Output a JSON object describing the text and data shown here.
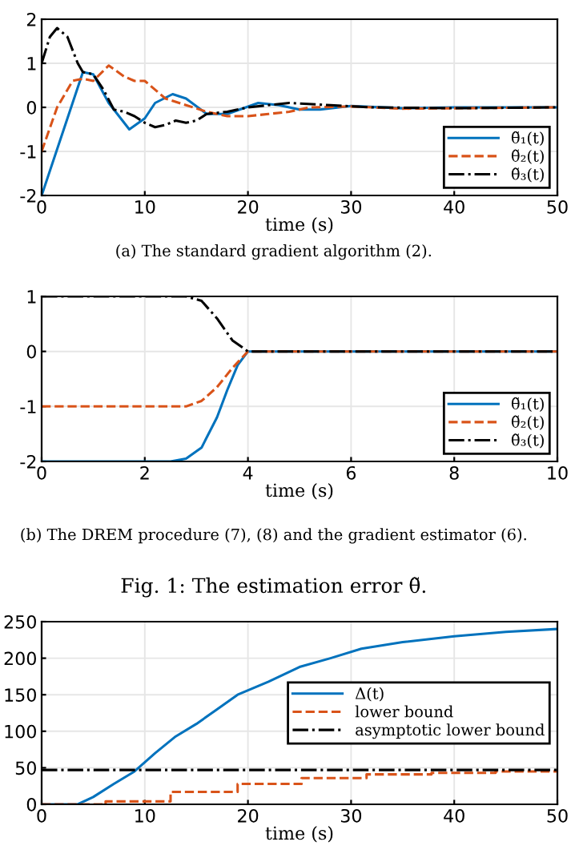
{
  "chart_data": [
    {
      "type": "line",
      "xlabel": "time (s)",
      "xlim": [
        0,
        50
      ],
      "ylim": [
        -2,
        2
      ],
      "xticks": [
        0,
        10,
        20,
        30,
        40,
        50
      ],
      "yticks": [
        -2,
        -1,
        0,
        1,
        2
      ],
      "grid": true,
      "legend": "bottom right",
      "annotations": [
        "(a) The standard gradient algorithm (2)."
      ],
      "series": [
        {
          "name": "θ̃₁(t)",
          "color": "#0072bd",
          "line_style": "solid",
          "x": [
            0,
            4,
            5,
            6.5,
            8.5,
            10,
            11,
            12.7,
            14,
            16,
            18,
            21,
            23,
            25,
            27,
            30,
            35,
            40,
            50
          ],
          "values": [
            -2,
            0.8,
            0.75,
            0.1,
            -0.5,
            -0.25,
            0.1,
            0.3,
            0.2,
            -0.15,
            -0.15,
            0.1,
            0.05,
            -0.05,
            -0.05,
            0.03,
            -0.02,
            0,
            0
          ]
        },
        {
          "name": "θ̃₂(t)",
          "color": "#d95319",
          "line_style": "dashed",
          "x": [
            0,
            1.5,
            3,
            4,
            5,
            6.5,
            8,
            9,
            10,
            12,
            14,
            16,
            18,
            20,
            22,
            24,
            26,
            30,
            35,
            50
          ],
          "values": [
            -1,
            0,
            0.6,
            0.65,
            0.6,
            0.95,
            0.7,
            0.6,
            0.6,
            0.2,
            0.05,
            -0.1,
            -0.2,
            -0.2,
            -0.15,
            -0.1,
            0,
            0.02,
            -0.03,
            0
          ]
        },
        {
          "name": "θ̃₃(t)",
          "color": "#000000",
          "line_style": "dashdot",
          "x": [
            0,
            0.8,
            1.5,
            2.5,
            3.5,
            4,
            5,
            6,
            7,
            8,
            9,
            10,
            11,
            12,
            13,
            14,
            15,
            16,
            18,
            20,
            22,
            24,
            28,
            32,
            40,
            50
          ],
          "values": [
            1,
            1.6,
            1.8,
            1.6,
            1,
            0.8,
            0.75,
            0.4,
            -0.05,
            -0.1,
            -0.2,
            -0.35,
            -0.45,
            -0.4,
            -0.3,
            -0.35,
            -0.3,
            -0.15,
            -0.1,
            0,
            0.05,
            0.1,
            0.05,
            0,
            -0.02,
            0
          ]
        }
      ]
    },
    {
      "type": "line",
      "xlabel": "time (s)",
      "xlim": [
        0,
        10
      ],
      "ylim": [
        -2,
        1
      ],
      "xticks": [
        0,
        2,
        4,
        6,
        8,
        10
      ],
      "yticks": [
        -2,
        -1,
        0,
        1
      ],
      "grid": true,
      "legend": "bottom right",
      "annotations": [
        "(b) The DREM procedure (7), (8) and the gradient estimator (6).",
        "Fig. 1: The estimation error θ̃."
      ],
      "series": [
        {
          "name": "θ̃₁(t)",
          "color": "#0072bd",
          "line_style": "solid",
          "x": [
            0,
            2.5,
            2.8,
            3.1,
            3.4,
            3.6,
            3.8,
            4,
            10
          ],
          "values": [
            -2,
            -2,
            -1.95,
            -1.75,
            -1.2,
            -0.7,
            -0.25,
            0,
            0
          ]
        },
        {
          "name": "θ̃₂(t)",
          "color": "#d95319",
          "line_style": "dashed",
          "x": [
            0,
            2.8,
            3.1,
            3.4,
            3.7,
            4,
            10
          ],
          "values": [
            -1,
            -1,
            -0.9,
            -0.65,
            -0.3,
            0,
            0
          ]
        },
        {
          "name": "θ̃₃(t)",
          "color": "#000000",
          "line_style": "dashdot",
          "x": [
            0,
            2.8,
            3.1,
            3.4,
            3.7,
            4,
            10
          ],
          "values": [
            1,
            1,
            0.92,
            0.6,
            0.2,
            0,
            0
          ]
        }
      ]
    },
    {
      "type": "line",
      "xlabel": "time (s)",
      "xlim": [
        0,
        50
      ],
      "ylim": [
        0,
        250
      ],
      "xticks": [
        0,
        10,
        20,
        30,
        40,
        50
      ],
      "yticks": [
        0,
        50,
        100,
        150,
        200,
        250
      ],
      "grid": true,
      "legend": "right",
      "series": [
        {
          "name": "Δ(t)",
          "color": "#0072bd",
          "line_style": "solid",
          "x": [
            0,
            3.5,
            5,
            7,
            9,
            11,
            13,
            15,
            17,
            19,
            22,
            25,
            28,
            31,
            35,
            40,
            45,
            50
          ],
          "values": [
            0,
            0,
            10,
            28,
            45,
            70,
            93,
            110,
            130,
            150,
            168,
            188,
            200,
            213,
            222,
            230,
            236,
            240
          ]
        },
        {
          "name": "lower bound",
          "type": "step",
          "color": "#d95319",
          "line_style": "dashed",
          "x": [
            0,
            6.2,
            12.5,
            19,
            25.2,
            31.5,
            37.8,
            44,
            50
          ],
          "values": [
            0,
            4,
            17,
            28,
            36,
            41,
            43,
            45,
            45
          ]
        },
        {
          "name": "asymptotic lower bound",
          "color": "#000000",
          "line_style": "dashdot",
          "x": [
            0,
            50
          ],
          "values": [
            47,
            47
          ]
        }
      ]
    }
  ]
}
